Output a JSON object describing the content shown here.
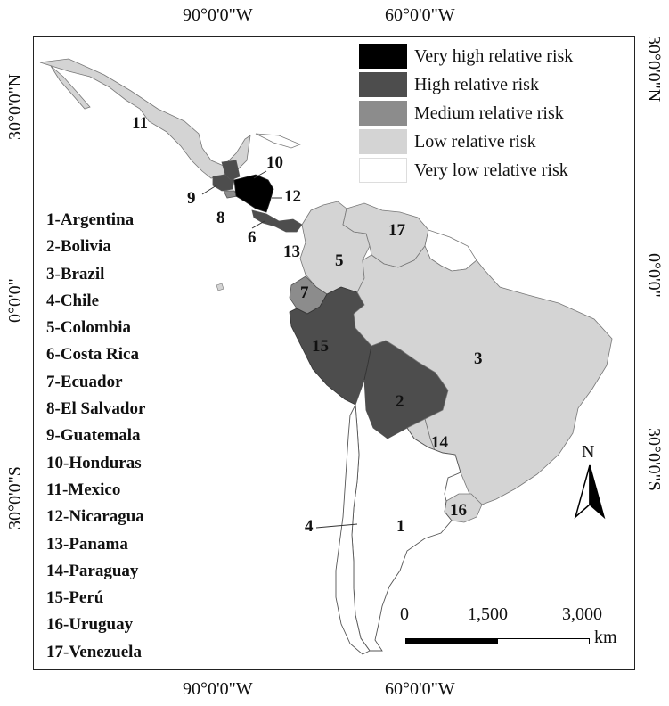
{
  "coordinates": {
    "top": [
      "90°0'0\"W",
      "60°0'0\"W"
    ],
    "bottom": [
      "90°0'0\"W",
      "60°0'0\"W"
    ],
    "left": [
      "30°0'0\"N",
      "0°0'0\"",
      "30°0'0\"S"
    ],
    "right": [
      "30°0'0\"N",
      "0°0'0\"",
      "30°0'0\"S"
    ]
  },
  "legend": [
    {
      "label": "Very high relative risk",
      "color": "#000000"
    },
    {
      "label": "High relative risk",
      "color": "#4d4d4d"
    },
    {
      "label": "Medium relative risk",
      "color": "#8c8c8c"
    },
    {
      "label": "Low relative risk",
      "color": "#d4d4d4"
    },
    {
      "label": "Very low relative risk",
      "color": "#ffffff"
    }
  ],
  "countries": [
    "1-Argentina",
    "2-Bolivia",
    "3-Brazil",
    "4-Chile",
    "5-Colombia",
    "6-Costa Rica",
    "7-Ecuador",
    "8-El Salvador",
    "9-Guatemala",
    "10-Honduras",
    "11-Mexico",
    "12-Nicaragua",
    "13-Panama",
    "14-Paraguay",
    "15-Perú",
    "16-Uruguay",
    "17-Venezuela"
  ],
  "map_numbers": [
    "1",
    "2",
    "3",
    "4",
    "5",
    "6",
    "7",
    "8",
    "9",
    "10",
    "11",
    "12",
    "13",
    "14",
    "15",
    "16",
    "17"
  ],
  "scale_bar": {
    "ticks": [
      "0",
      "1,500",
      "3,000"
    ],
    "unit": "km"
  },
  "north_arrow": {
    "label": "N"
  }
}
